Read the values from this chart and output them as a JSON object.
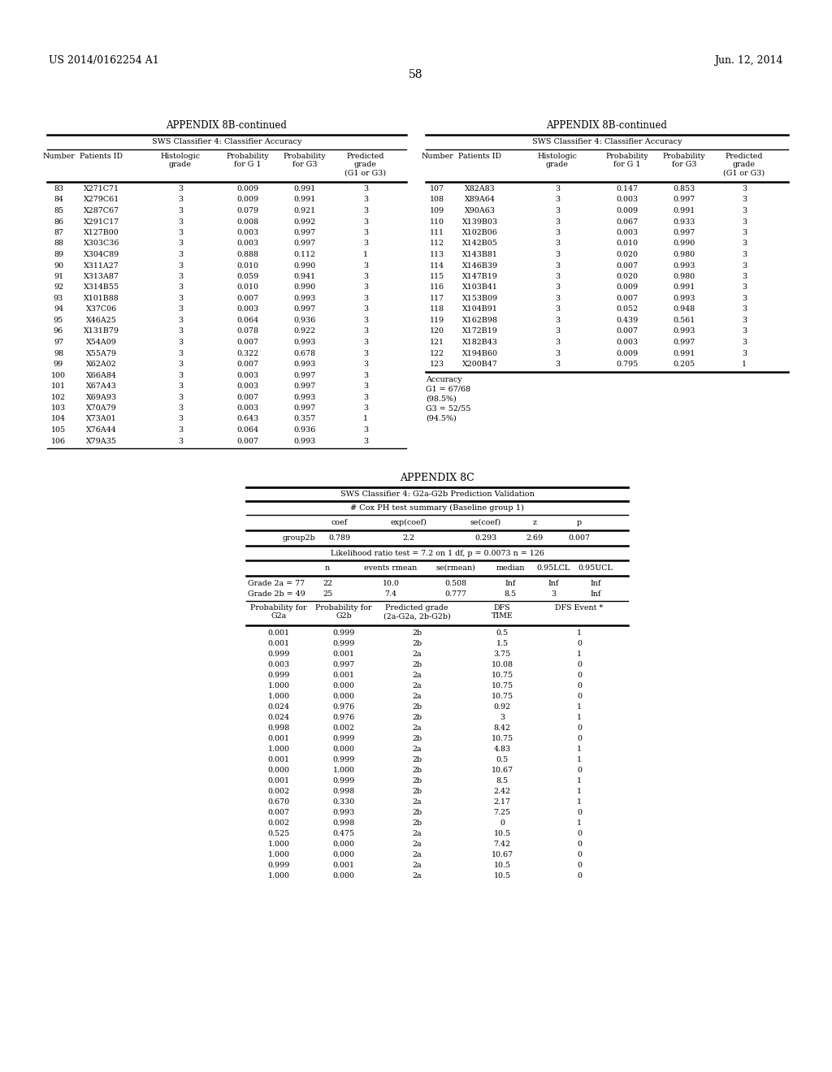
{
  "header_left": "US 2014/0162254 A1",
  "header_right": "Jun. 12, 2014",
  "page_number": "58",
  "appendix_8b_title": "APPENDIX 8B-continued",
  "appendix_8b_subtitle": "SWS Classifier 4: Classifier Accuracy",
  "left_table_data": [
    [
      "83",
      "X271C71",
      "3",
      "0.009",
      "0.991",
      "3"
    ],
    [
      "84",
      "X279C61",
      "3",
      "0.009",
      "0.991",
      "3"
    ],
    [
      "85",
      "X287C67",
      "3",
      "0.079",
      "0.921",
      "3"
    ],
    [
      "86",
      "X291C17",
      "3",
      "0.008",
      "0.992",
      "3"
    ],
    [
      "87",
      "X127B00",
      "3",
      "0.003",
      "0.997",
      "3"
    ],
    [
      "88",
      "X303C36",
      "3",
      "0.003",
      "0.997",
      "3"
    ],
    [
      "89",
      "X304C89",
      "3",
      "0.888",
      "0.112",
      "1"
    ],
    [
      "90",
      "X311A27",
      "3",
      "0.010",
      "0.990",
      "3"
    ],
    [
      "91",
      "X313A87",
      "3",
      "0.059",
      "0.941",
      "3"
    ],
    [
      "92",
      "X314B55",
      "3",
      "0.010",
      "0.990",
      "3"
    ],
    [
      "93",
      "X101B88",
      "3",
      "0.007",
      "0.993",
      "3"
    ],
    [
      "94",
      "X37C06",
      "3",
      "0.003",
      "0.997",
      "3"
    ],
    [
      "95",
      "X46A25",
      "3",
      "0.064",
      "0.936",
      "3"
    ],
    [
      "96",
      "X131B79",
      "3",
      "0.078",
      "0.922",
      "3"
    ],
    [
      "97",
      "X54A09",
      "3",
      "0.007",
      "0.993",
      "3"
    ],
    [
      "98",
      "X55A79",
      "3",
      "0.322",
      "0.678",
      "3"
    ],
    [
      "99",
      "X62A02",
      "3",
      "0.007",
      "0.993",
      "3"
    ],
    [
      "100",
      "X66A84",
      "3",
      "0.003",
      "0.997",
      "3"
    ],
    [
      "101",
      "X67A43",
      "3",
      "0.003",
      "0.997",
      "3"
    ],
    [
      "102",
      "X69A93",
      "3",
      "0.007",
      "0.993",
      "3"
    ],
    [
      "103",
      "X70A79",
      "3",
      "0.003",
      "0.997",
      "3"
    ],
    [
      "104",
      "X73A01",
      "3",
      "0.643",
      "0.357",
      "1"
    ],
    [
      "105",
      "X76A44",
      "3",
      "0.064",
      "0.936",
      "3"
    ],
    [
      "106",
      "X79A35",
      "3",
      "0.007",
      "0.993",
      "3"
    ]
  ],
  "right_table_data": [
    [
      "107",
      "X82A83",
      "3",
      "0.147",
      "0.853",
      "3"
    ],
    [
      "108",
      "X89A64",
      "3",
      "0.003",
      "0.997",
      "3"
    ],
    [
      "109",
      "X90A63",
      "3",
      "0.009",
      "0.991",
      "3"
    ],
    [
      "110",
      "X139B03",
      "3",
      "0.067",
      "0.933",
      "3"
    ],
    [
      "111",
      "X102B06",
      "3",
      "0.003",
      "0.997",
      "3"
    ],
    [
      "112",
      "X142B05",
      "3",
      "0.010",
      "0.990",
      "3"
    ],
    [
      "113",
      "X143B81",
      "3",
      "0.020",
      "0.980",
      "3"
    ],
    [
      "114",
      "X146B39",
      "3",
      "0.007",
      "0.993",
      "3"
    ],
    [
      "115",
      "X147B19",
      "3",
      "0.020",
      "0.980",
      "3"
    ],
    [
      "116",
      "X103B41",
      "3",
      "0.009",
      "0.991",
      "3"
    ],
    [
      "117",
      "X153B09",
      "3",
      "0.007",
      "0.993",
      "3"
    ],
    [
      "118",
      "X104B91",
      "3",
      "0.052",
      "0.948",
      "3"
    ],
    [
      "119",
      "X162B98",
      "3",
      "0.439",
      "0.561",
      "3"
    ],
    [
      "120",
      "X172B19",
      "3",
      "0.007",
      "0.993",
      "3"
    ],
    [
      "121",
      "X182B43",
      "3",
      "0.003",
      "0.997",
      "3"
    ],
    [
      "122",
      "X194B60",
      "3",
      "0.009",
      "0.991",
      "3"
    ],
    [
      "123",
      "X200B47",
      "3",
      "0.795",
      "0.205",
      "1"
    ]
  ],
  "accuracy_lines": [
    "Accuracy",
    "G1 = 67/68",
    "(98.5%)",
    "G3 = 52/55",
    "(94.5%)"
  ],
  "appendix_8c_title": "APPENDIX 8C",
  "appendix_8c_subtitle": "SWS Classifier 4: G2a-G2b Prediction Validation",
  "cox_header": "# Cox PH test summary (Baseline group 1)",
  "cox_data": [
    [
      "group2b",
      "0.789",
      "2.2",
      "0.293",
      "2.69",
      "0.007"
    ]
  ],
  "likelihood_text": "Likelihood ratio test = 7.2 on 1 df, p = 0.0073 n = 126",
  "surv_data": [
    [
      "Grade 2a = 77",
      "22",
      "10.0",
      "0.508",
      "Inf",
      "Inf",
      "Inf"
    ],
    [
      "Grade 2b = 49",
      "25",
      "7.4",
      "0.777",
      "8.5",
      "3",
      "Inf"
    ]
  ],
  "pred_data": [
    [
      "0.001",
      "0.999",
      "2b",
      "0.5",
      "1"
    ],
    [
      "0.001",
      "0.999",
      "2b",
      "1.5",
      "0"
    ],
    [
      "0.999",
      "0.001",
      "2a",
      "3.75",
      "1"
    ],
    [
      "0.003",
      "0.997",
      "2b",
      "10.08",
      "0"
    ],
    [
      "0.999",
      "0.001",
      "2a",
      "10.75",
      "0"
    ],
    [
      "1.000",
      "0.000",
      "2a",
      "10.75",
      "0"
    ],
    [
      "1.000",
      "0.000",
      "2a",
      "10.75",
      "0"
    ],
    [
      "0.024",
      "0.976",
      "2b",
      "0.92",
      "1"
    ],
    [
      "0.024",
      "0.976",
      "2b",
      "3",
      "1"
    ],
    [
      "0.998",
      "0.002",
      "2a",
      "8.42",
      "0"
    ],
    [
      "0.001",
      "0.999",
      "2b",
      "10.75",
      "0"
    ],
    [
      "1.000",
      "0.000",
      "2a",
      "4.83",
      "1"
    ],
    [
      "0.001",
      "0.999",
      "2b",
      "0.5",
      "1"
    ],
    [
      "0.000",
      "1.000",
      "2b",
      "10.67",
      "0"
    ],
    [
      "0.001",
      "0.999",
      "2b",
      "8.5",
      "1"
    ],
    [
      "0.002",
      "0.998",
      "2b",
      "2.42",
      "1"
    ],
    [
      "0.670",
      "0.330",
      "2a",
      "2.17",
      "1"
    ],
    [
      "0.007",
      "0.993",
      "2b",
      "7.25",
      "0"
    ],
    [
      "0.002",
      "0.998",
      "2b",
      "0",
      "1"
    ],
    [
      "0.525",
      "0.475",
      "2a",
      "10.5",
      "0"
    ],
    [
      "1.000",
      "0.000",
      "2a",
      "7.42",
      "0"
    ],
    [
      "1.000",
      "0.000",
      "2a",
      "10.67",
      "0"
    ],
    [
      "0.999",
      "0.001",
      "2a",
      "10.5",
      "0"
    ],
    [
      "1.000",
      "0.000",
      "2a",
      "10.5",
      "0"
    ]
  ]
}
